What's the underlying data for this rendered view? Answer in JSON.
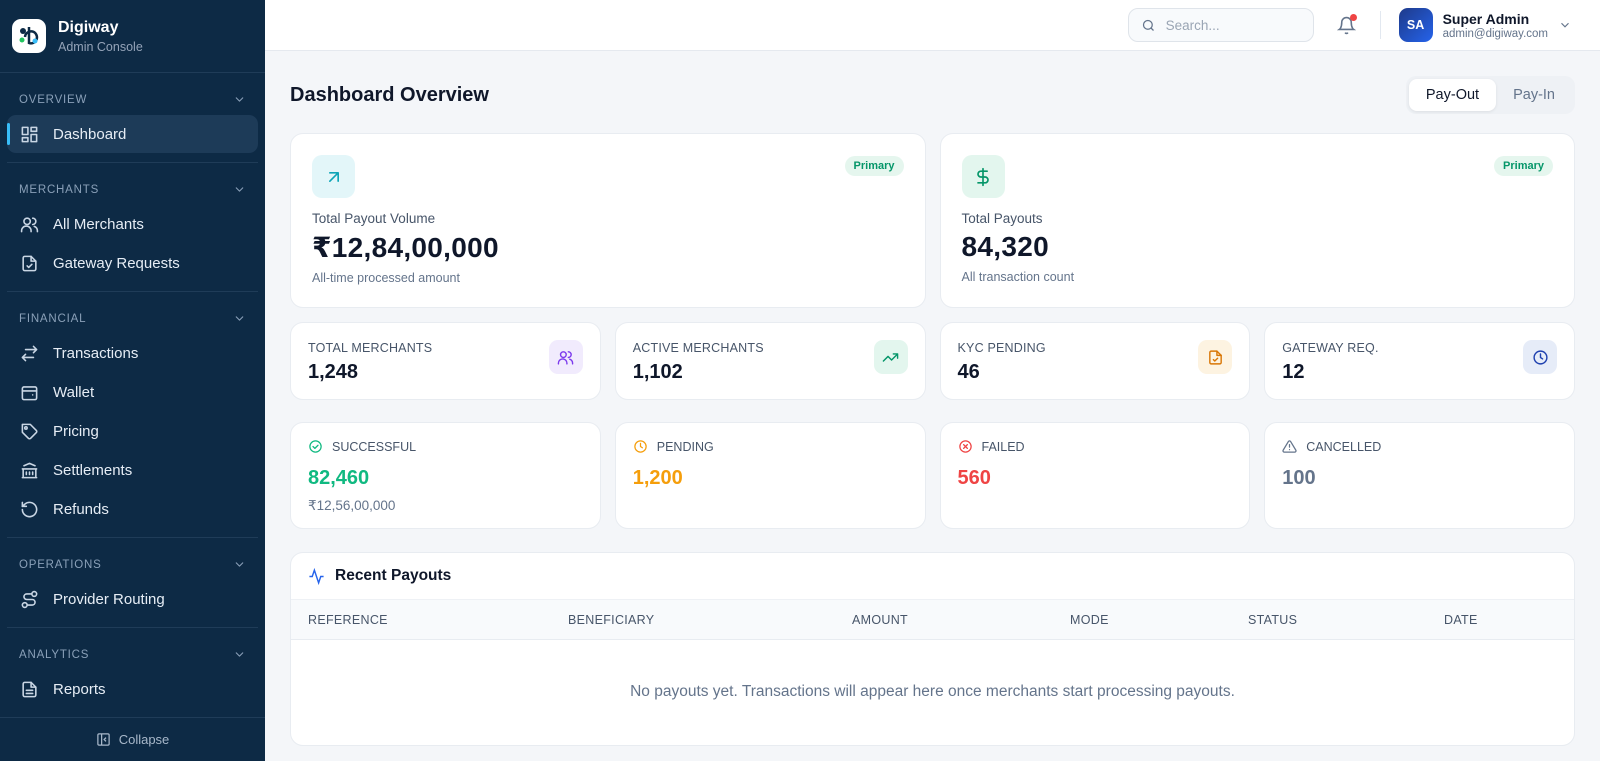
{
  "sidebar": {
    "brand": {
      "name": "Digiway",
      "subtitle": "Admin Console"
    },
    "sections": [
      {
        "title": "OVERVIEW",
        "items": [
          "Dashboard"
        ]
      },
      {
        "title": "MERCHANTS",
        "items": [
          "All Merchants",
          "Gateway Requests"
        ]
      },
      {
        "title": "FINANCIAL",
        "items": [
          "Transactions",
          "Wallet",
          "Pricing",
          "Settlements",
          "Refunds"
        ]
      },
      {
        "title": "OPERATIONS",
        "items": [
          "Provider Routing"
        ]
      },
      {
        "title": "ANALYTICS",
        "items": [
          "Reports"
        ]
      }
    ],
    "collapse": "Collapse"
  },
  "topbar": {
    "search_placeholder": "Search...",
    "user": {
      "initials": "SA",
      "name": "Super Admin",
      "email": "admin@digiway.com"
    }
  },
  "page": {
    "title": "Dashboard Overview",
    "tabs": [
      "Pay-Out",
      "Pay-In"
    ]
  },
  "hero_cards": [
    {
      "label": "Total Payout Volume",
      "value": "₹12,84,00,000",
      "note": "All-time processed amount",
      "badge": "Primary"
    },
    {
      "label": "Total Payouts",
      "value": "84,320",
      "note": "All transaction count",
      "badge": "Primary"
    }
  ],
  "stat_cards": [
    {
      "label": "TOTAL MERCHANTS",
      "value": "1,248"
    },
    {
      "label": "ACTIVE MERCHANTS",
      "value": "1,102"
    },
    {
      "label": "KYC PENDING",
      "value": "46"
    },
    {
      "label": "GATEWAY REQ.",
      "value": "12"
    }
  ],
  "status_cards": [
    {
      "label": "SUCCESSFUL",
      "value": "82,460",
      "note": "₹12,56,00,000"
    },
    {
      "label": "PENDING",
      "value": "1,200"
    },
    {
      "label": "FAILED",
      "value": "560"
    },
    {
      "label": "CANCELLED",
      "value": "100"
    }
  ],
  "recent_payouts": {
    "title": "Recent Payouts",
    "columns": [
      "REFERENCE",
      "BENEFICIARY",
      "AMOUNT",
      "MODE",
      "STATUS",
      "DATE"
    ],
    "empty": "No payouts yet. Transactions will appear here once merchants start processing payouts."
  }
}
